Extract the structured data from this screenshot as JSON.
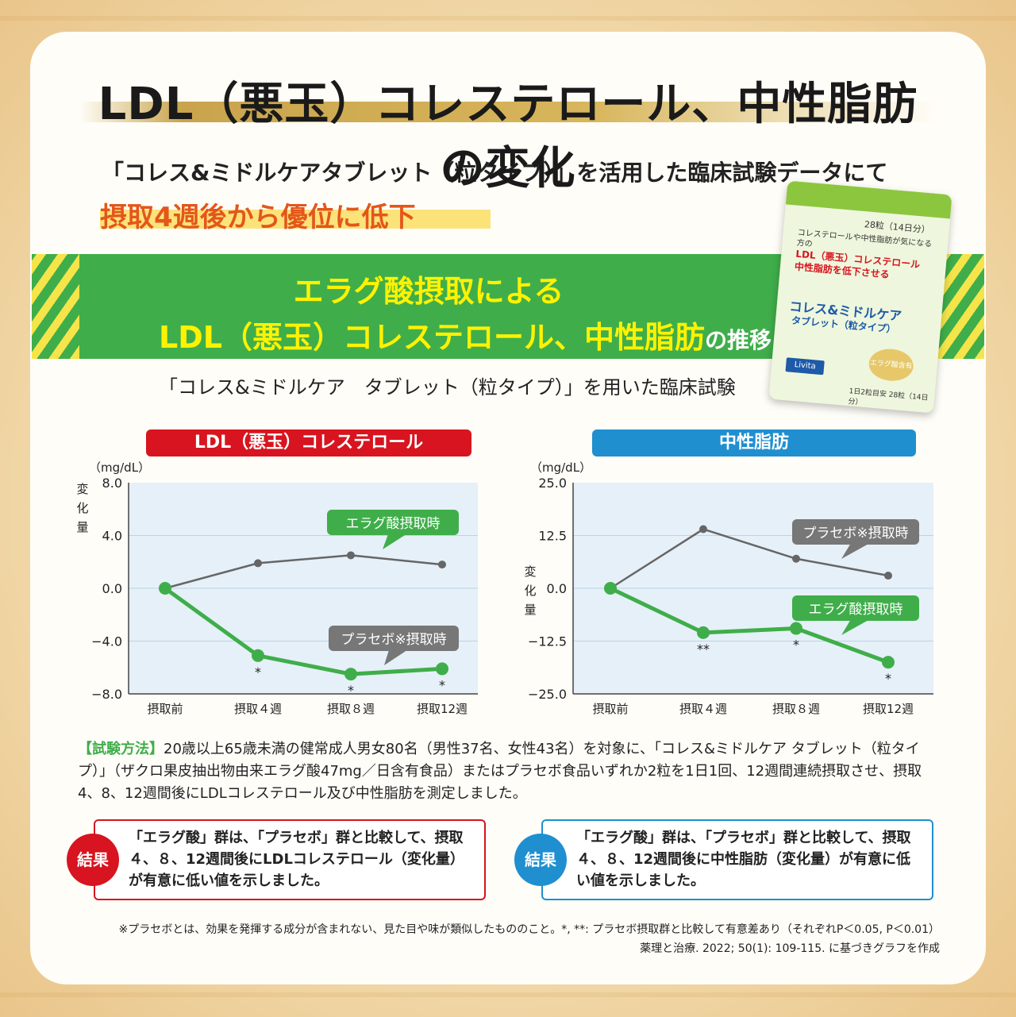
{
  "header": {
    "title": "LDL（悪玉）コレステロール、中性脂肪の変化",
    "intro": "「コレス&ミドルケアタブレット（粒タイプ）」を活用した臨床試験データにて",
    "highlight": "摂取4週後から優位に低下"
  },
  "band": {
    "line1": "エラグ酸摂取による",
    "line2": "LDL（悪玉）コレステロール、中性脂肪",
    "line2_suffix": "の推移"
  },
  "trial_caption": "「コレス&ミドルケア　タブレット（粒タイプ）」を用いた臨床試験",
  "package": {
    "count": "28粒（14日分）",
    "lead": "コレステロールや中性脂肪が気になる方の",
    "claim1": "LDL（悪玉）コレステロール",
    "claim2": "中性脂肪を低下させる",
    "name": "コレス&ミドルケア",
    "sub": "タブレット（粒タイプ）",
    "seal": "エラグ酸含有",
    "brand": "Livita",
    "bottom": "1日2粒目安 28粒（14日分）"
  },
  "colors": {
    "green": "#3fae4a",
    "placebo": "#666666",
    "ldl_header": "#d7141f",
    "tg_header": "#1f8fd0",
    "plot_bg": "#e6f0f8"
  },
  "chart_data": [
    {
      "type": "line",
      "title": "LDL（悪玉）コレステロール",
      "unit": "（mg/dL）",
      "ylabel": "変化量",
      "categories": [
        "摂取前",
        "摂取４週",
        "摂取８週",
        "摂取12週"
      ],
      "yticks": [
        "8.0",
        "4.0",
        "0.0",
        "−4.0",
        "−8.0"
      ],
      "ylim": [
        -8,
        8
      ],
      "series": [
        {
          "name": "プラセボ※摂取時",
          "values": [
            0,
            1.9,
            2.5,
            1.8
          ]
        },
        {
          "name": "エラグ酸摂取時",
          "values": [
            0,
            -5.1,
            -6.5,
            -6.1
          ]
        }
      ],
      "markers": [
        "",
        "*",
        "*",
        "*"
      ]
    },
    {
      "type": "line",
      "title": "中性脂肪",
      "unit": "（mg/dL）",
      "ylabel": "変化量",
      "categories": [
        "摂取前",
        "摂取４週",
        "摂取８週",
        "摂取12週"
      ],
      "yticks": [
        "25.0",
        "12.5",
        "0.0",
        "−12.5",
        "−25.0"
      ],
      "ylim": [
        -25,
        25
      ],
      "series": [
        {
          "name": "プラセボ※摂取時",
          "values": [
            0,
            14,
            7,
            3
          ]
        },
        {
          "name": "エラグ酸摂取時",
          "values": [
            0,
            -10.5,
            -9.5,
            -17.5
          ]
        }
      ],
      "markers": [
        "",
        "**",
        "*",
        "*"
      ]
    }
  ],
  "method": {
    "tag": "【試験方法】",
    "text": "20歳以上65歳未満の健常成人男女80名（男性37名、女性43名）を対象に、「コレス&ミドルケア タブレット（粒タイプ）」（ザクロ果皮抽出物由来エラグ酸47mg／日含有食品）またはプラセボ食品いずれか2粒を1日1回、12週間連続摂取させ、摂取4、8、12週間後にLDLコレステロール及び中性脂肪を測定しました。"
  },
  "results": {
    "label": "結果",
    "ldl": "「エラグ酸」群は、「プラセボ」群と比較して、摂取４、８、12週間後にLDLコレステロール（変化量）が有意に低い値を示しました。",
    "tg": "「エラグ酸」群は、「プラセボ」群と比較して、摂取４、８、12週間後に中性脂肪（変化量）が有意に低い値を示しました。"
  },
  "footnote": "※プラセボとは、効果を発揮する成分が含まれない、見た目や味が類似したもののこと。*, **: プラセボ摂取群と比較して有意差あり（それぞれP＜0.05, P＜0.01）",
  "citation": "薬理と治療. 2022; 50(1): 109-115. に基づきグラフを作成"
}
